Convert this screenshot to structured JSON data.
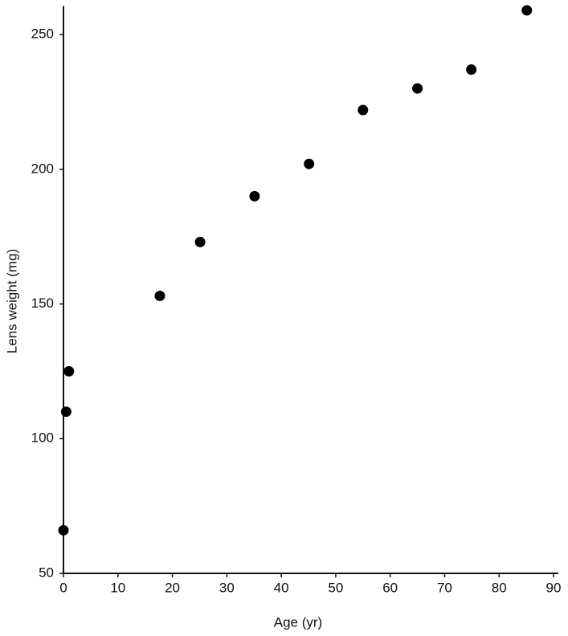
{
  "chart_data": {
    "type": "scatter",
    "x_label": "Age (yr)",
    "y_label": "Lens weight (mg)",
    "x": [
      0,
      0.5,
      1,
      17.7,
      25.1,
      35.1,
      45.1,
      55,
      65,
      74.9,
      85.1
    ],
    "values": [
      66,
      110,
      125,
      153,
      173,
      190,
      202,
      222,
      230,
      237,
      259
    ],
    "color": "#000000",
    "xlim": [
      0,
      90
    ],
    "ylim": [
      50,
      260
    ],
    "xticks": [
      0,
      10,
      20,
      30,
      40,
      50,
      60,
      70,
      80,
      90
    ],
    "yticks": [
      50,
      100,
      150,
      200,
      250
    ],
    "grid": false
  }
}
